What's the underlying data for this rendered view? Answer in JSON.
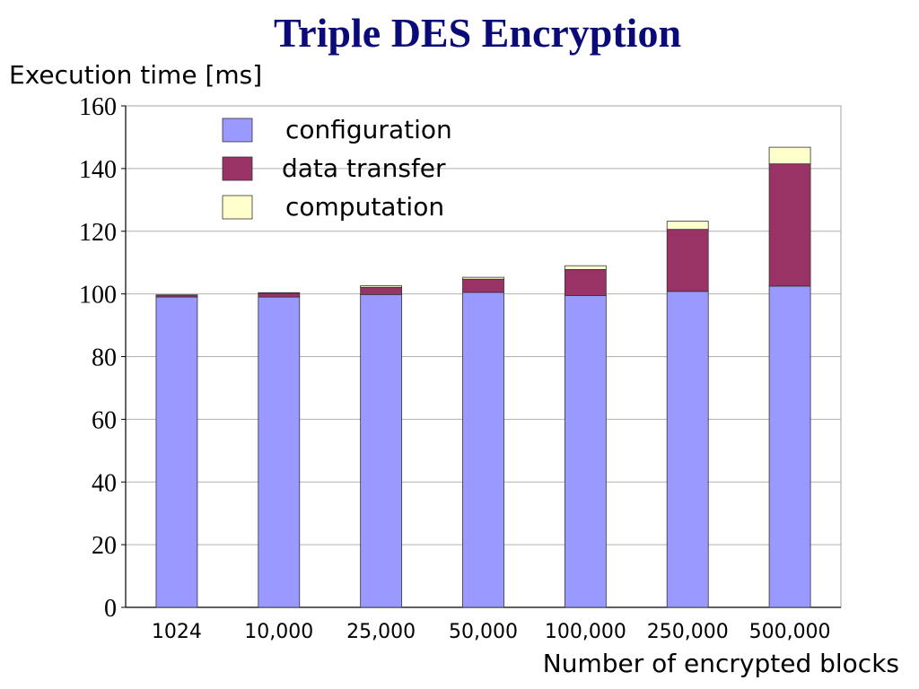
{
  "chart_data": {
    "type": "bar",
    "stacked": true,
    "title": "Triple DES Encryption",
    "ylabel": "Execution time [ms]",
    "xlabel": "Number of encrypted blocks",
    "ylim": [
      0,
      160
    ],
    "yticks": [
      0,
      20,
      40,
      60,
      80,
      100,
      120,
      140,
      160
    ],
    "categories": [
      "1024",
      "10,000",
      "25,000",
      "50,000",
      "100,000",
      "250,000",
      "500,000"
    ],
    "series": [
      {
        "name": "configuration",
        "color": "#9999ff",
        "values": [
          99.0,
          99.0,
          99.8,
          100.5,
          99.5,
          100.8,
          102.5
        ]
      },
      {
        "name": "data transfer",
        "color": "#993366",
        "values": [
          0.6,
          1.2,
          2.3,
          4.2,
          8.3,
          19.8,
          39.0
        ]
      },
      {
        "name": "computation",
        "color": "#ffffcc",
        "values": [
          0.1,
          0.2,
          0.5,
          0.6,
          1.2,
          2.6,
          5.3
        ]
      }
    ],
    "grid": true,
    "legend_position": "top-left"
  }
}
